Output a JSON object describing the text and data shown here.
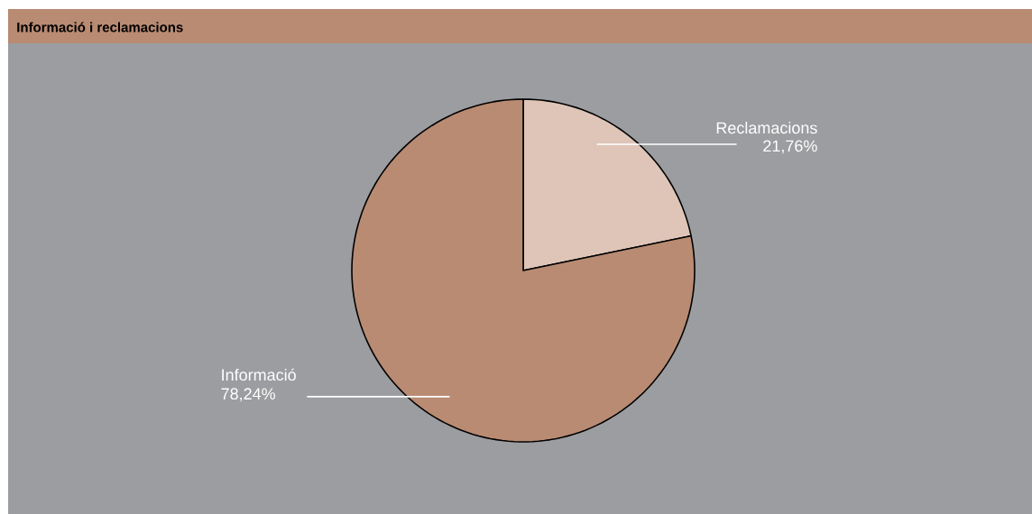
{
  "chart_data": {
    "type": "pie",
    "title": "Informació i reclamacions",
    "categories": [
      "Reclamacions",
      "Informació"
    ],
    "values": [
      21.76,
      78.24
    ],
    "value_labels": [
      "21,76%",
      "78,24%"
    ],
    "colors": [
      "#dec5b8",
      "#b98b73"
    ]
  }
}
